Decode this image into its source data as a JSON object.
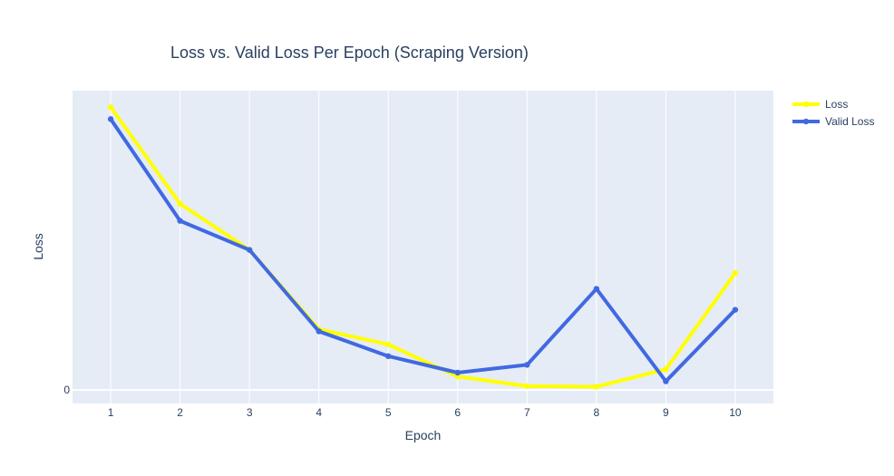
{
  "chart_data": {
    "type": "line",
    "title": "Loss vs. Valid Loss Per Epoch (Scraping Version)",
    "xlabel": "Epoch",
    "ylabel": "Loss",
    "x": [
      1,
      2,
      3,
      4,
      5,
      6,
      7,
      8,
      9,
      10
    ],
    "yticks": [
      0
    ],
    "ylim": [
      -0.045,
      1.0
    ],
    "xlim": [
      0.45,
      10.55
    ],
    "series": [
      {
        "name": "Loss",
        "color": "#ffff00",
        "values": [
          0.945,
          0.622,
          0.468,
          0.203,
          0.152,
          0.045,
          0.013,
          0.011,
          0.069,
          0.391
        ]
      },
      {
        "name": "Valid Loss",
        "color": "#4169e1",
        "values": [
          0.905,
          0.565,
          0.468,
          0.196,
          0.113,
          0.058,
          0.084,
          0.338,
          0.029,
          0.268
        ]
      }
    ],
    "legend_position": "top-right",
    "grid": true
  }
}
